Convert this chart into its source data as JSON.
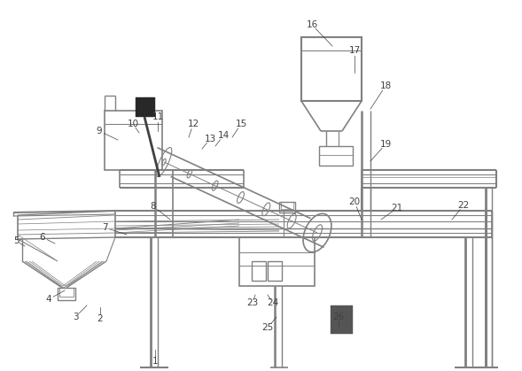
{
  "bg_color": "#ffffff",
  "lc": "#808080",
  "dc": "#404040",
  "label_color": "#404040",
  "fig_w": 589,
  "fig_h": 419,
  "font_size": 7.5,
  "labels": [
    [
      1,
      175,
      408,
      175,
      395
    ],
    [
      2,
      113,
      360,
      113,
      347
    ],
    [
      3,
      85,
      358,
      98,
      345
    ],
    [
      4,
      55,
      338,
      73,
      328
    ],
    [
      5,
      18,
      272,
      28,
      278
    ],
    [
      6,
      48,
      268,
      62,
      275
    ],
    [
      7,
      118,
      257,
      143,
      265
    ],
    [
      8,
      173,
      233,
      192,
      248
    ],
    [
      9,
      112,
      148,
      133,
      158
    ],
    [
      10,
      150,
      140,
      157,
      150
    ],
    [
      11,
      178,
      132,
      178,
      148
    ],
    [
      12,
      218,
      140,
      213,
      155
    ],
    [
      13,
      237,
      157,
      228,
      168
    ],
    [
      14,
      252,
      153,
      243,
      165
    ],
    [
      15,
      272,
      140,
      262,
      155
    ],
    [
      16,
      352,
      28,
      375,
      52
    ],
    [
      17,
      400,
      57,
      400,
      82
    ],
    [
      18,
      435,
      97,
      418,
      123
    ],
    [
      19,
      435,
      163,
      418,
      182
    ],
    [
      20,
      400,
      228,
      408,
      248
    ],
    [
      21,
      448,
      235,
      430,
      248
    ],
    [
      22,
      523,
      232,
      510,
      248
    ],
    [
      23,
      285,
      342,
      288,
      333
    ],
    [
      24,
      308,
      342,
      302,
      333
    ],
    [
      25,
      302,
      370,
      312,
      358
    ],
    [
      26,
      382,
      358,
      382,
      368
    ]
  ]
}
